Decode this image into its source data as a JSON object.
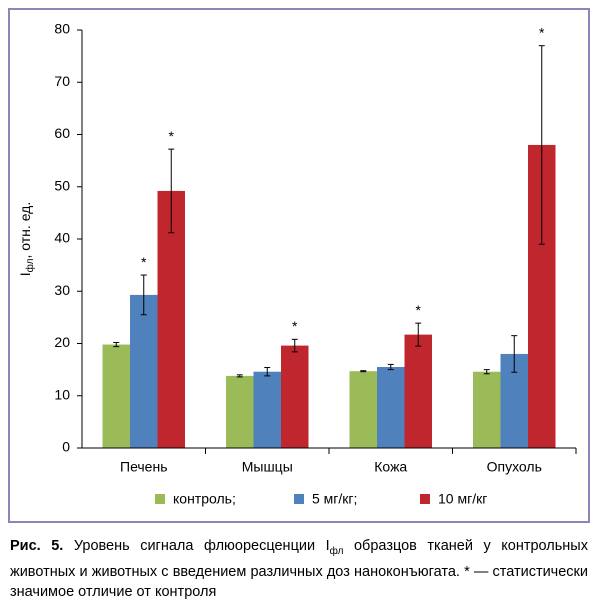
{
  "chart_data": {
    "type": "bar",
    "y_label": {
      "main": "I",
      "sub": "фл",
      "rest": ", отн. ед."
    },
    "categories": [
      "Печень",
      "Мышцы",
      "Кожа",
      "Опухоль"
    ],
    "series": [
      {
        "name": "контроль;",
        "color": "#9bbb59",
        "values": [
          19.8,
          13.8,
          14.7,
          14.6
        ],
        "errors": [
          0.4,
          0.2,
          0.1,
          0.4
        ],
        "significance": [
          null,
          null,
          null,
          null
        ]
      },
      {
        "name": "5 мг/кг;",
        "color": "#4f81bd",
        "values": [
          29.3,
          14.6,
          15.5,
          18.0
        ],
        "errors": [
          3.8,
          0.8,
          0.5,
          3.5
        ],
        "significance": [
          "*",
          null,
          null,
          null
        ]
      },
      {
        "name": "10 мг/кг",
        "color": "#c0262d",
        "values": [
          49.2,
          19.6,
          21.7,
          58.0
        ],
        "errors": [
          8.0,
          1.2,
          2.2,
          19.0
        ],
        "significance": [
          "*",
          "*",
          "*",
          "*"
        ]
      }
    ],
    "ylim": [
      0,
      80
    ],
    "yticks": [
      0,
      10,
      20,
      30,
      40,
      50,
      60,
      70,
      80
    ],
    "grid": false,
    "legend": "bottom"
  },
  "caption": {
    "label": "Рис. 5.",
    "text1": " Уровень сигнала флюоресценции I",
    "sub": "фл",
    "text2": " образцов тканей у контрольных животных и животных с введением различных доз наноконъюгата. * — статистически значимое отличие от контроля"
  }
}
